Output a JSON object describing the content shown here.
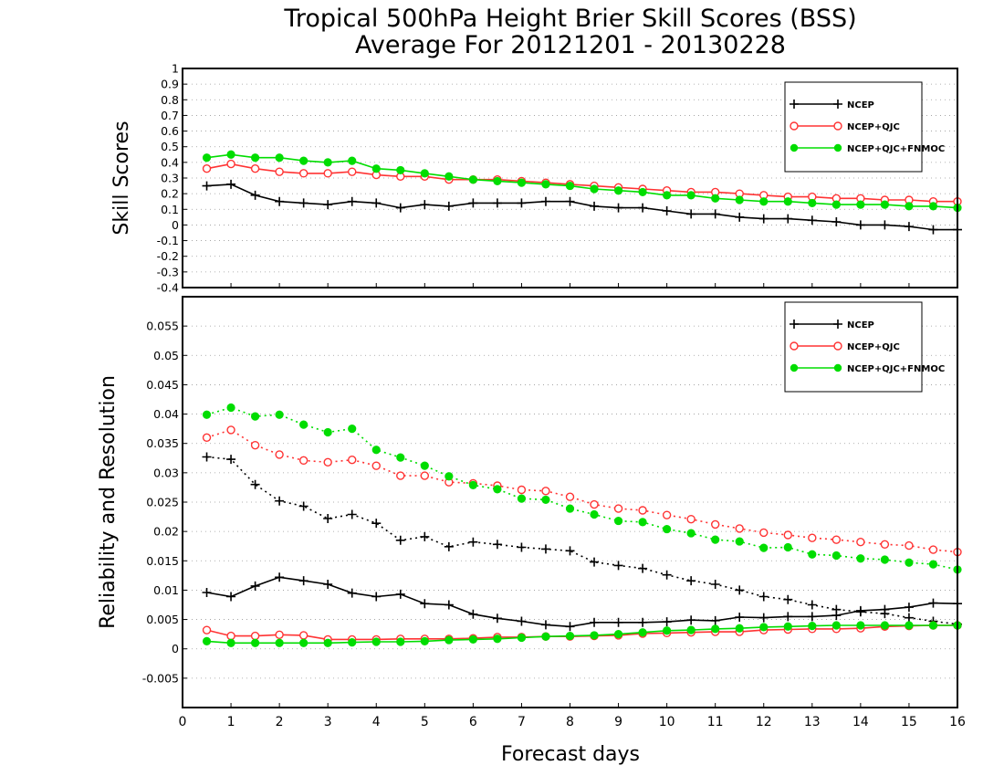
{
  "title_line1": "Tropical 500hPa Height Brier Skill Scores (BSS)",
  "title_line2": "Average For 20121201 - 20130228",
  "xlabel": "Forecast days",
  "colors": {
    "ncep": "#000000",
    "qc": "#ff3333",
    "fnmoc": "#00dd00"
  },
  "chart_data": [
    {
      "type": "line",
      "title": "",
      "ylabel": "Skill Scores",
      "xlabel": "",
      "xlim": [
        0,
        16
      ],
      "ylim": [
        -0.4,
        1
      ],
      "yticks": [
        "1",
        "0.9",
        "0.8",
        "0.7",
        "0.6",
        "0.5",
        "0.4",
        "0.3",
        "0.2",
        "0.1",
        "0",
        "-0.1",
        "-0.2",
        "-0.3",
        "-0.4"
      ],
      "grid": true,
      "legend": "top-right",
      "x": [
        0.5,
        1,
        1.5,
        2,
        2.5,
        3,
        3.5,
        4,
        4.5,
        5,
        5.5,
        6,
        6.5,
        7,
        7.5,
        8,
        8.5,
        9,
        9.5,
        10,
        10.5,
        11,
        11.5,
        12,
        12.5,
        13,
        13.5,
        14,
        14.5,
        15,
        15.5,
        16
      ],
      "series": [
        {
          "name": "NCEP",
          "color": "#000000",
          "marker": "plus",
          "values": [
            0.25,
            0.26,
            0.19,
            0.15,
            0.14,
            0.13,
            0.15,
            0.14,
            0.11,
            0.13,
            0.12,
            0.14,
            0.14,
            0.14,
            0.15,
            0.15,
            0.12,
            0.11,
            0.11,
            0.09,
            0.07,
            0.07,
            0.05,
            0.04,
            0.04,
            0.03,
            0.02,
            0.0,
            0.0,
            -0.01,
            -0.03,
            -0.03
          ]
        },
        {
          "name": "NCEP+QJC",
          "color": "#ff3333",
          "marker": "circle-open",
          "values": [
            0.36,
            0.39,
            0.36,
            0.34,
            0.33,
            0.33,
            0.34,
            0.32,
            0.31,
            0.31,
            0.29,
            0.29,
            0.29,
            0.28,
            0.27,
            0.26,
            0.25,
            0.24,
            0.23,
            0.22,
            0.21,
            0.21,
            0.2,
            0.19,
            0.18,
            0.18,
            0.17,
            0.17,
            0.16,
            0.16,
            0.15,
            0.15
          ]
        },
        {
          "name": "NCEP+QJC+FNMOC",
          "color": "#00dd00",
          "marker": "circle-filled",
          "values": [
            0.43,
            0.45,
            0.43,
            0.43,
            0.41,
            0.4,
            0.41,
            0.36,
            0.35,
            0.33,
            0.31,
            0.29,
            0.28,
            0.27,
            0.26,
            0.25,
            0.23,
            0.22,
            0.21,
            0.19,
            0.19,
            0.17,
            0.16,
            0.15,
            0.15,
            0.14,
            0.13,
            0.13,
            0.13,
            0.12,
            0.12,
            0.11
          ]
        }
      ]
    },
    {
      "type": "line",
      "title": "",
      "ylabel": "Reliability and Resolution",
      "xlabel": "Forecast days",
      "xlim": [
        0,
        16
      ],
      "ylim": [
        -0.01,
        0.06
      ],
      "xticks": [
        "0",
        "1",
        "2",
        "3",
        "4",
        "5",
        "6",
        "7",
        "8",
        "9",
        "10",
        "11",
        "12",
        "13",
        "14",
        "15",
        "16"
      ],
      "yticks": [
        "0.055",
        "0.05",
        "0.045",
        "0.04",
        "0.035",
        "0.03",
        "0.025",
        "0.02",
        "0.015",
        "0.01",
        "0.005",
        "0",
        "-0.005"
      ],
      "grid": true,
      "legend": "top-right",
      "x": [
        0.5,
        1,
        1.5,
        2,
        2.5,
        3,
        3.5,
        4,
        4.5,
        5,
        5.5,
        6,
        6.5,
        7,
        7.5,
        8,
        8.5,
        9,
        9.5,
        10,
        10.5,
        11,
        11.5,
        12,
        12.5,
        13,
        13.5,
        14,
        14.5,
        15,
        15.5,
        16
      ],
      "series": [
        {
          "name": "NCEP",
          "color": "#000000",
          "marker": "plus",
          "line": "dotted",
          "values": [
            0.0327,
            0.0323,
            0.028,
            0.0252,
            0.0243,
            0.0222,
            0.0229,
            0.0214,
            0.0185,
            0.0191,
            0.0174,
            0.0182,
            0.0178,
            0.0173,
            0.017,
            0.0167,
            0.0148,
            0.0142,
            0.0137,
            0.0126,
            0.0116,
            0.011,
            0.01,
            0.0089,
            0.0084,
            0.0075,
            0.0067,
            0.0063,
            0.006,
            0.0053,
            0.0047,
            0.0042
          ]
        },
        {
          "name": "NCEP+QJC",
          "color": "#ff3333",
          "marker": "circle-open",
          "line": "dotted",
          "values": [
            0.036,
            0.0373,
            0.0347,
            0.0331,
            0.0321,
            0.0318,
            0.0322,
            0.0312,
            0.0295,
            0.0295,
            0.0284,
            0.0282,
            0.0278,
            0.0271,
            0.0269,
            0.0259,
            0.0246,
            0.0239,
            0.0236,
            0.0228,
            0.0221,
            0.0212,
            0.0205,
            0.0198,
            0.0194,
            0.0189,
            0.0186,
            0.0182,
            0.0178,
            0.0176,
            0.0169,
            0.0165
          ]
        },
        {
          "name": "NCEP+QJC+FNMOC",
          "color": "#00dd00",
          "marker": "circle-filled",
          "line": "dotted",
          "values": [
            0.0399,
            0.0411,
            0.0396,
            0.0399,
            0.0382,
            0.0369,
            0.0375,
            0.0339,
            0.0326,
            0.0312,
            0.0294,
            0.0279,
            0.0272,
            0.0256,
            0.0254,
            0.0239,
            0.0229,
            0.0218,
            0.0216,
            0.0204,
            0.0197,
            0.0186,
            0.0183,
            0.0172,
            0.0173,
            0.0161,
            0.0159,
            0.0154,
            0.0152,
            0.0147,
            0.0144,
            0.0135
          ]
        },
        {
          "name": "NCEP",
          "color": "#000000",
          "marker": "plus",
          "line": "solid",
          "values": [
            0.0096,
            0.0089,
            0.0107,
            0.0122,
            0.0116,
            0.011,
            0.0095,
            0.0089,
            0.0093,
            0.0077,
            0.0075,
            0.0059,
            0.0052,
            0.0047,
            0.0041,
            0.0038,
            0.0045,
            0.0045,
            0.0045,
            0.0046,
            0.0049,
            0.0048,
            0.0054,
            0.0053,
            0.0055,
            0.0055,
            0.0057,
            0.0065,
            0.0067,
            0.0071,
            0.0078,
            0.0077
          ]
        },
        {
          "name": "NCEP+QJC",
          "color": "#ff3333",
          "marker": "circle-open",
          "line": "solid",
          "values": [
            0.0032,
            0.0022,
            0.0022,
            0.0024,
            0.0023,
            0.0016,
            0.0016,
            0.0016,
            0.0017,
            0.0017,
            0.0017,
            0.0018,
            0.002,
            0.002,
            0.0021,
            0.0021,
            0.0022,
            0.0023,
            0.0026,
            0.0027,
            0.0028,
            0.0029,
            0.0029,
            0.0032,
            0.0033,
            0.0034,
            0.0034,
            0.0035,
            0.0038,
            0.0039,
            0.004,
            0.004
          ]
        },
        {
          "name": "NCEP+QJC+FNMOC",
          "color": "#00dd00",
          "marker": "circle-filled",
          "line": "solid",
          "values": [
            0.0013,
            0.001,
            0.001,
            0.001,
            0.001,
            0.001,
            0.0011,
            0.0012,
            0.0012,
            0.0013,
            0.0015,
            0.0016,
            0.0017,
            0.0019,
            0.0021,
            0.0022,
            0.0023,
            0.0025,
            0.0028,
            0.0031,
            0.0032,
            0.0034,
            0.0035,
            0.0037,
            0.0038,
            0.0039,
            0.004,
            0.004,
            0.004,
            0.004,
            0.004,
            0.004
          ]
        }
      ]
    }
  ]
}
